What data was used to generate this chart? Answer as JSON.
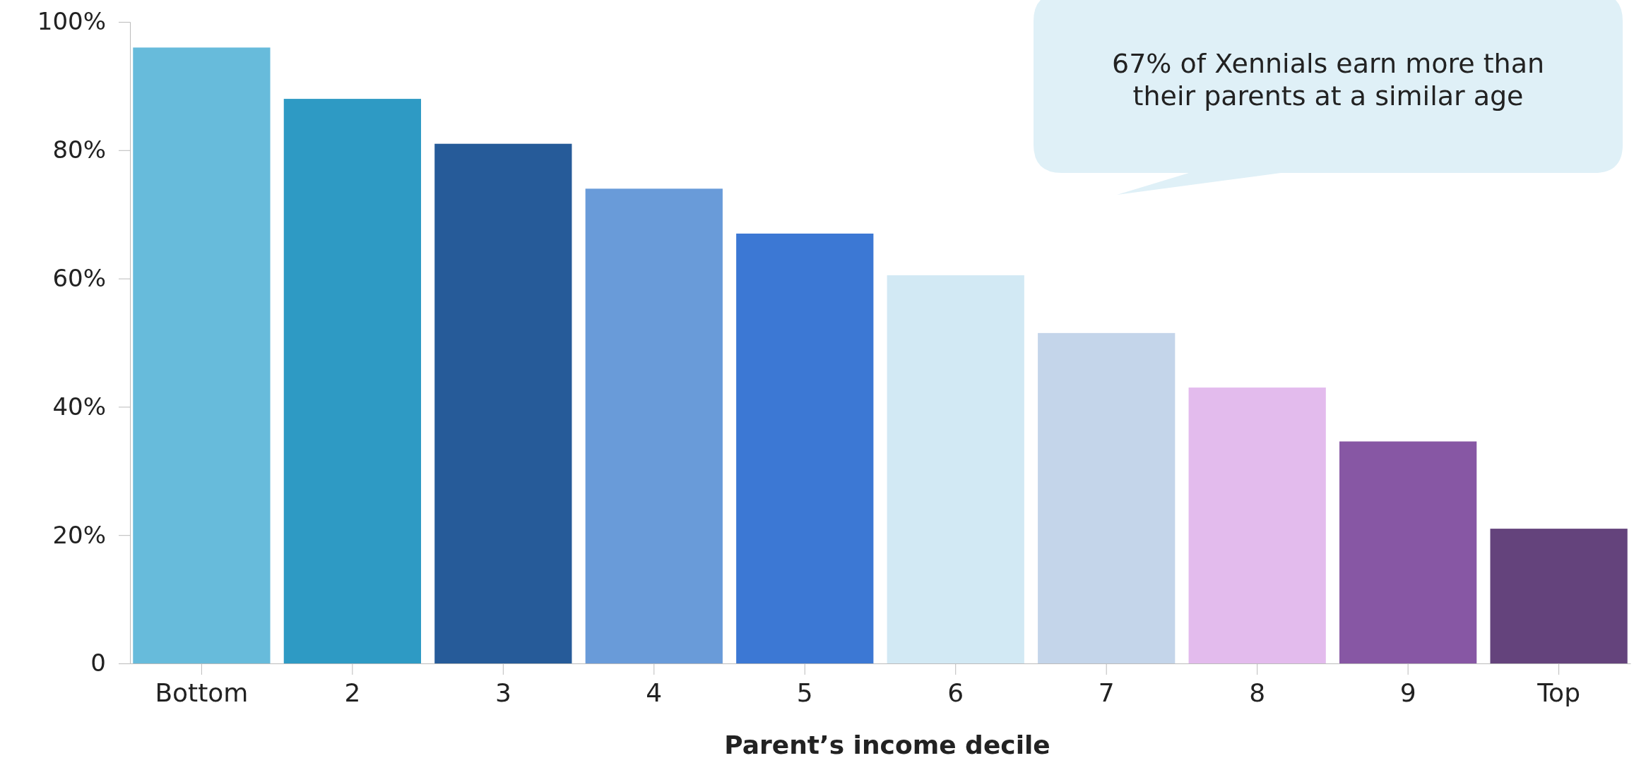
{
  "chart_data": {
    "type": "bar",
    "xlabel": "Parent’s income decile",
    "categories": [
      "Bottom",
      "2",
      "3",
      "4",
      "5",
      "6",
      "7",
      "8",
      "9",
      "Top"
    ],
    "values": [
      96,
      88,
      81,
      74,
      67,
      60.5,
      51.5,
      43,
      34.6,
      21
    ],
    "colors": [
      "#67bbdb",
      "#2e9ac4",
      "#265b99",
      "#699bd9",
      "#3c78d4",
      "#d2e9f4",
      "#c4d5ea",
      "#e3bbed",
      "#8757a4",
      "#64437c"
    ],
    "ylim": [
      0,
      100
    ],
    "yticks": [
      {
        "value": 0,
        "label": "0"
      },
      {
        "value": 20,
        "label": "20%"
      },
      {
        "value": 40,
        "label": "40%"
      },
      {
        "value": 60,
        "label": "60%"
      },
      {
        "value": 80,
        "label": "80%"
      },
      {
        "value": 100,
        "label": "100%"
      }
    ],
    "grid": false,
    "annotations": [
      "67% of Xennials earn more than their parents at a similar age"
    ]
  }
}
